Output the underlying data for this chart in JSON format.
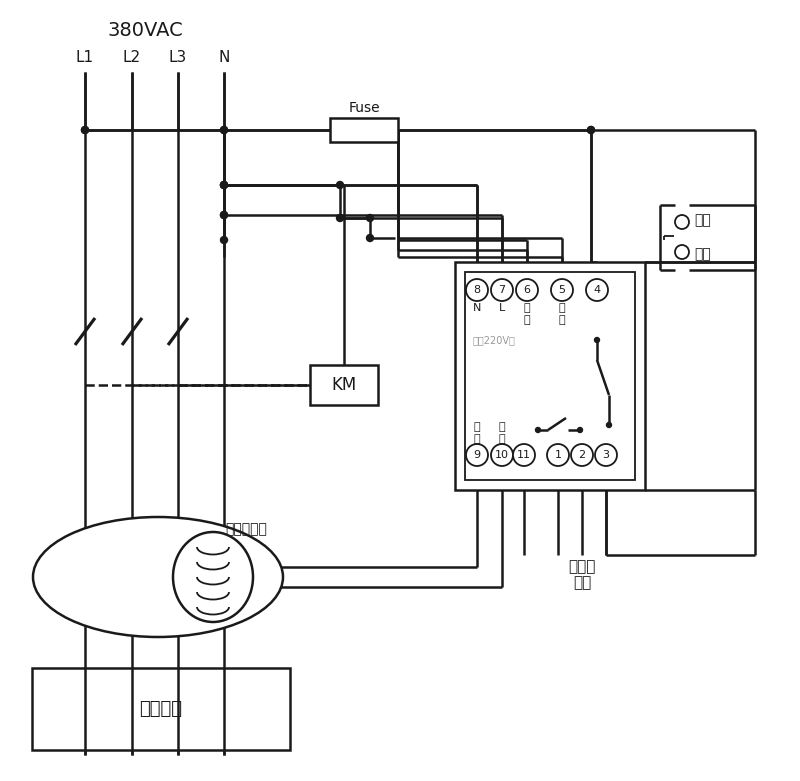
{
  "bg_color": "#ffffff",
  "line_color": "#1a1a1a",
  "text_color": "#1a1a1a",
  "gray_color": "#999999",
  "label_380": "380VAC",
  "labels_L": [
    "L1",
    "L2",
    "L3",
    "N"
  ],
  "fuse_label": "Fuse",
  "km_label": "KM",
  "zero_seq_label": "零序互感器",
  "user_device_label": "用户设备",
  "sound_light_label1": "接声光",
  "sound_light_label2": "报警",
  "self_lock_label1": "自锁",
  "self_lock_label2": "开关",
  "power_label": "电源220V～",
  "term_top_nums": [
    "8",
    "7",
    "6",
    "5",
    "4"
  ],
  "term_bot_nums": [
    "9",
    "10",
    "11",
    "1",
    "2",
    "3"
  ],
  "top_labels_row1": [
    "N",
    "L",
    "试",
    "试",
    ""
  ],
  "top_labels_row2": [
    "",
    "",
    "验",
    "验",
    ""
  ],
  "bot_labels_row1": [
    "信",
    "信",
    "",
    "",
    "",
    ""
  ],
  "bot_labels_row2": [
    "号",
    "号",
    "",
    "",
    "",
    ""
  ]
}
